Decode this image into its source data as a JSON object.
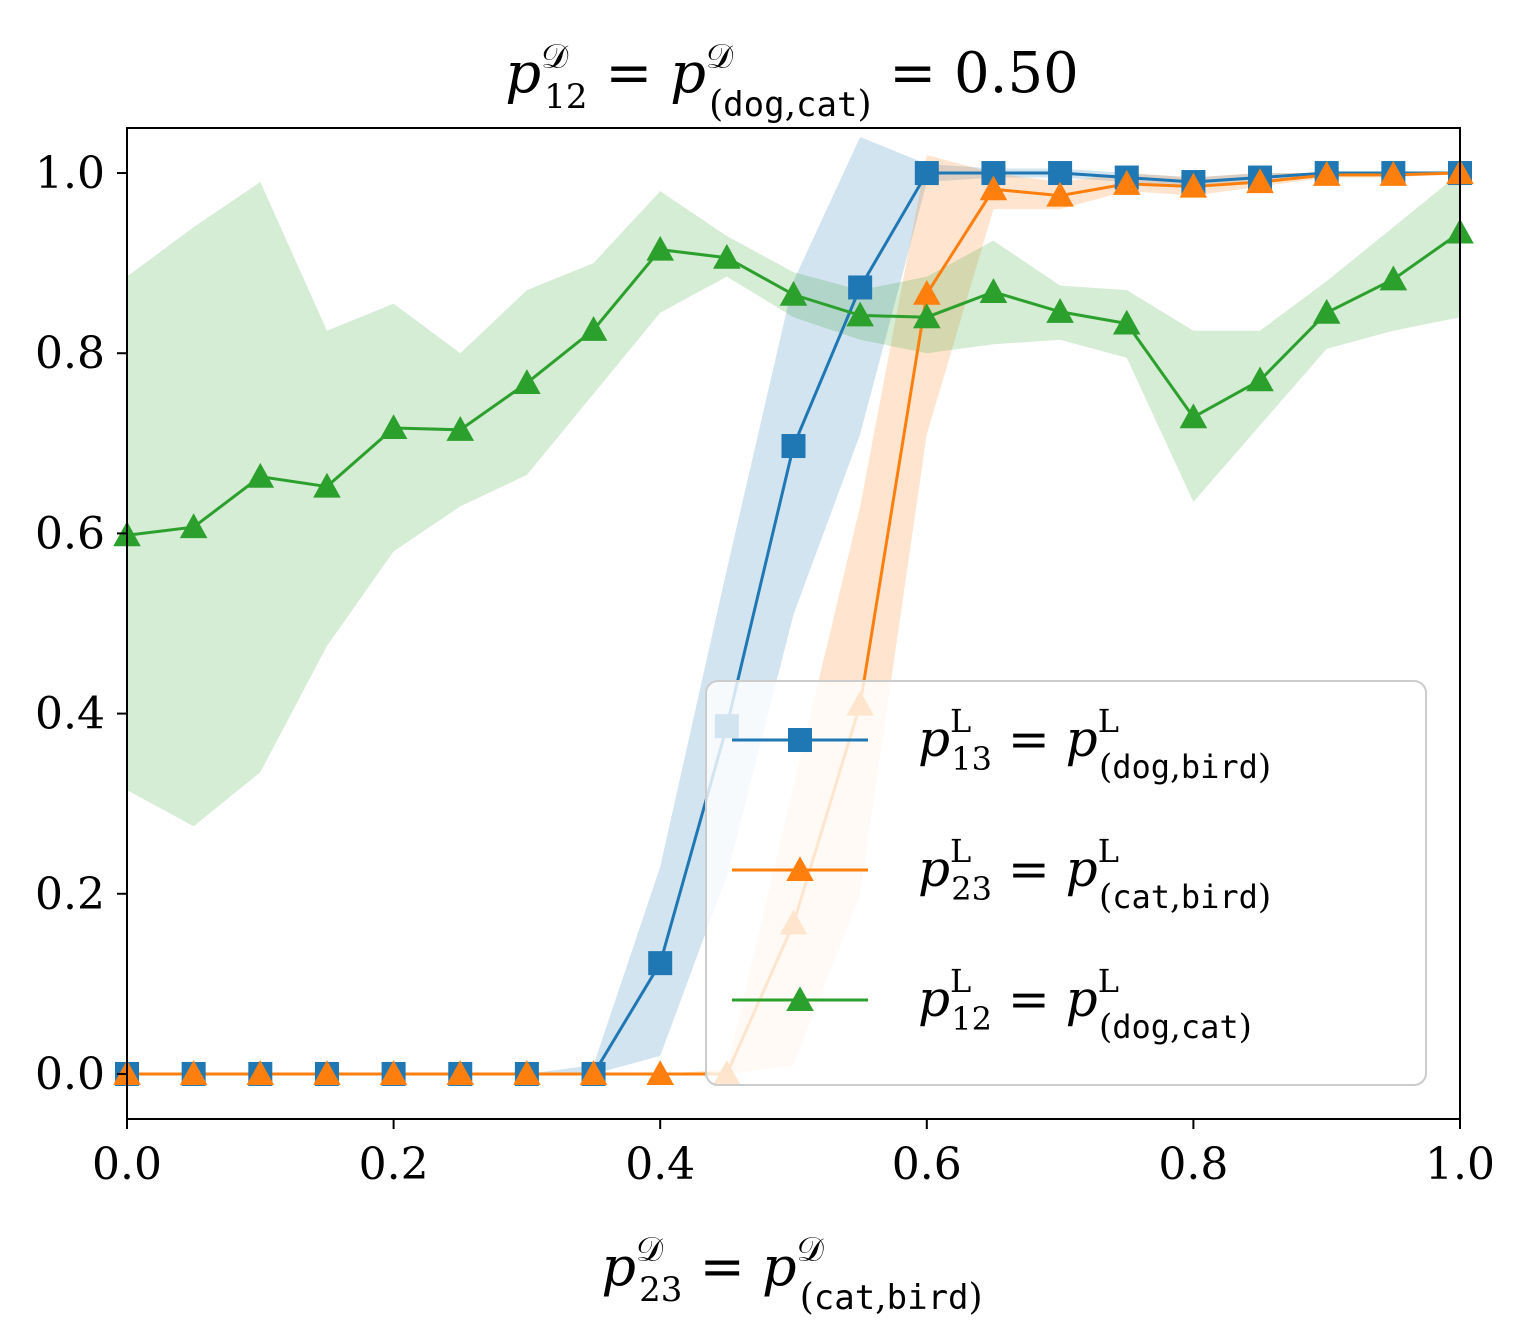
{
  "chart_data": {
    "type": "line",
    "title": {
      "base": "p",
      "sup1": "𝒟",
      "sub1": "12",
      "eq": " = ",
      "sup2": "𝒟",
      "sub2_open": "(",
      "sub2_w1": "dog",
      "sub2_comma": ",",
      "sub2_w2": "cat",
      "sub2_close": ")",
      "value": " = 0.50"
    },
    "xlabel": {
      "base": "p",
      "sup1": "𝒟",
      "sub1": "23",
      "eq": " = ",
      "sup2": "𝒟",
      "sub2_open": "(",
      "sub2_w1": "cat",
      "sub2_comma": ",",
      "sub2_w2": "bird",
      "sub2_close": ")"
    },
    "ylabel": "",
    "xlim": [
      0.0,
      1.0
    ],
    "ylim": [
      -0.05,
      1.05
    ],
    "xticks": [
      "0.0",
      "0.2",
      "0.4",
      "0.6",
      "0.8",
      "1.0"
    ],
    "yticks": [
      "0.0",
      "0.2",
      "0.4",
      "0.6",
      "0.8",
      "1.0"
    ],
    "grid": false,
    "legend_position": "lower-right",
    "x": [
      0.0,
      0.05,
      0.1,
      0.15,
      0.2,
      0.25,
      0.3,
      0.35,
      0.4,
      0.45,
      0.5,
      0.55,
      0.6,
      0.65,
      0.7,
      0.75,
      0.8,
      0.85,
      0.9,
      0.95,
      1.0
    ],
    "series": [
      {
        "name": "p13_dog_bird",
        "legend": {
          "base": "p",
          "sup": "L",
          "sub1": "13",
          "eq": " = ",
          "sub2_open": "(",
          "sub2_w1": "dog",
          "sub2_comma": ",",
          "sub2_w2": "bird",
          "sub2_close": ")"
        },
        "color": "#1f77b4",
        "marker": "square",
        "values": [
          0,
          0,
          0,
          0,
          0,
          0,
          0,
          0,
          0.123,
          0.386,
          0.697,
          0.873,
          1.0,
          1.0,
          1.0,
          0.995,
          0.99,
          0.995,
          1.0,
          1.0,
          1.0
        ],
        "upper": [
          0,
          0,
          0,
          0,
          0,
          0,
          0,
          0.01,
          0.23,
          0.56,
          0.88,
          1.04,
          1.01,
          1.005,
          1.005,
          1.0,
          0.995,
          1.0,
          1.0,
          1.0,
          1.0
        ],
        "lower": [
          0,
          0,
          0,
          0,
          0,
          0,
          0,
          0,
          0.02,
          0.22,
          0.51,
          0.71,
          0.99,
          0.995,
          0.995,
          0.99,
          0.985,
          0.99,
          1.0,
          1.0,
          1.0
        ]
      },
      {
        "name": "p23_cat_bird",
        "legend": {
          "base": "p",
          "sup": "L",
          "sub1": "23",
          "eq": " = ",
          "sub2_open": "(",
          "sub2_w1": "cat",
          "sub2_comma": ",",
          "sub2_w2": "bird",
          "sub2_close": ")"
        },
        "color": "#ff7f0e",
        "marker": "triangle",
        "values": [
          0,
          0,
          0,
          0,
          0,
          0,
          0,
          0,
          0,
          0,
          0.167,
          0.41,
          0.866,
          0.982,
          0.975,
          0.988,
          0.985,
          0.99,
          0.998,
          0.998,
          1.0
        ],
        "upper": [
          0,
          0,
          0,
          0,
          0,
          0,
          0,
          0,
          0,
          0.005,
          0.32,
          0.63,
          1.02,
          1.0,
          0.99,
          1.0,
          0.995,
          1.0,
          1.0,
          1.0,
          1.0
        ],
        "lower": [
          0,
          0,
          0,
          0,
          0,
          0,
          0,
          0,
          0,
          0,
          0.01,
          0.2,
          0.71,
          0.96,
          0.96,
          0.98,
          0.975,
          0.985,
          0.995,
          0.995,
          1.0
        ]
      },
      {
        "name": "p12_dog_cat",
        "legend": {
          "base": "p",
          "sup": "L",
          "sub1": "12",
          "eq": " = ",
          "sub2_open": "(",
          "sub2_w1": "dog",
          "sub2_comma": ",",
          "sub2_w2": "cat",
          "sub2_close": ")"
        },
        "color": "#2ca02c",
        "marker": "triangle",
        "values": [
          0.598,
          0.607,
          0.663,
          0.652,
          0.717,
          0.715,
          0.767,
          0.826,
          0.915,
          0.906,
          0.865,
          0.842,
          0.84,
          0.868,
          0.846,
          0.833,
          0.729,
          0.77,
          0.845,
          0.882,
          0.934
        ],
        "upper": [
          0.885,
          0.94,
          0.99,
          0.825,
          0.855,
          0.8,
          0.87,
          0.9,
          0.98,
          0.93,
          0.89,
          0.87,
          0.885,
          0.925,
          0.875,
          0.87,
          0.825,
          0.825,
          0.88,
          0.94,
          1.0
        ],
        "lower": [
          0.315,
          0.275,
          0.335,
          0.475,
          0.58,
          0.63,
          0.665,
          0.755,
          0.845,
          0.885,
          0.84,
          0.815,
          0.8,
          0.81,
          0.815,
          0.795,
          0.635,
          0.72,
          0.805,
          0.825,
          0.84
        ]
      }
    ]
  }
}
